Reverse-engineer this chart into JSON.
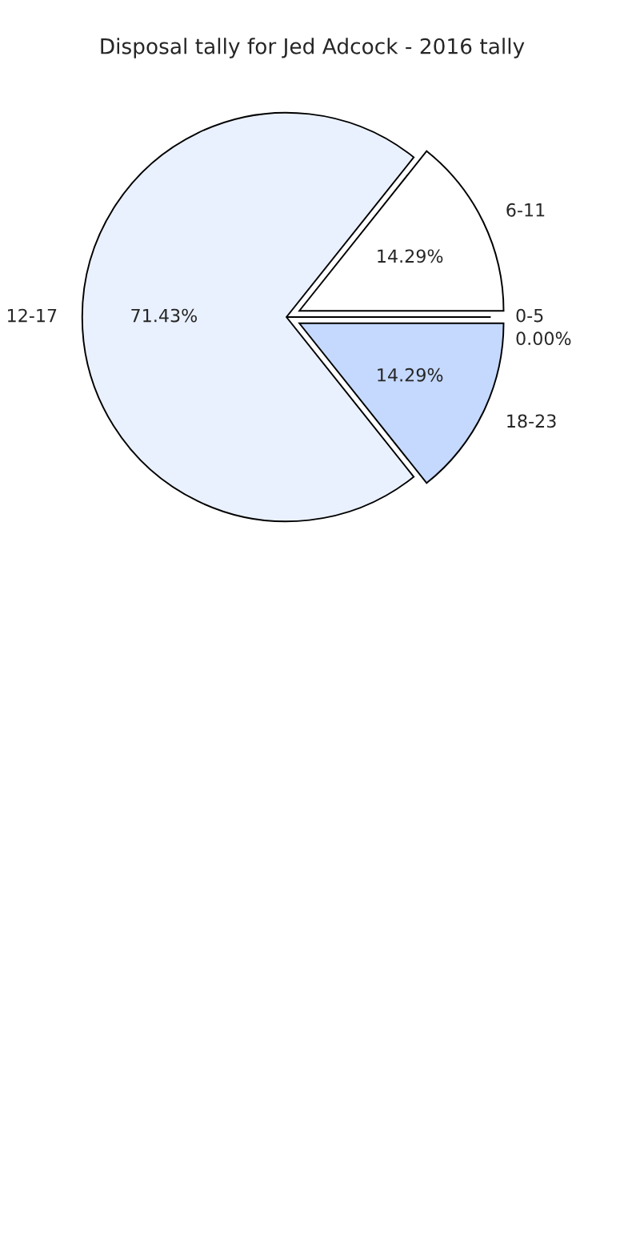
{
  "chart_data": {
    "type": "pie",
    "title": "Disposal tally for Jed Adcock - 2016 tally",
    "categories": [
      "0-5",
      "6-11",
      "12-17",
      "18-23"
    ],
    "values": [
      0,
      14.29,
      71.43,
      14.29
    ],
    "value_labels": [
      "0.00%",
      "14.29%",
      "71.43%",
      "14.29%"
    ],
    "colors": [
      "#9fbdfd",
      "#ffffff",
      "#eaf1fe",
      "#c5d9fe"
    ]
  }
}
